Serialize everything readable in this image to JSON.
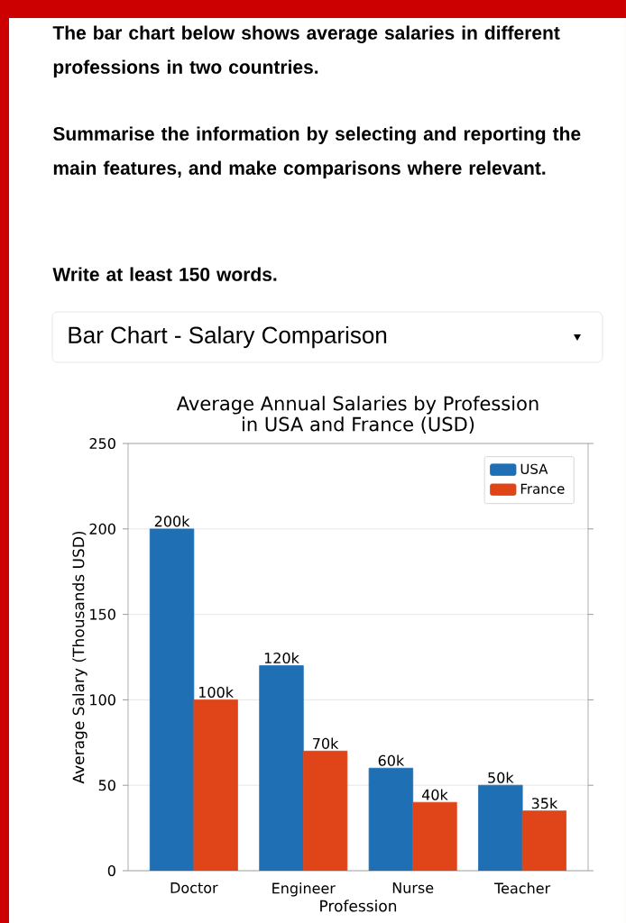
{
  "chart_data": {
    "type": "bar",
    "title": "Average Annual Salaries by Profession\nin USA and France (USD)",
    "xlabel": "Profession",
    "ylabel": "Average Salary (Thousands USD)",
    "annotations": [
      "The bar chart below shows average salaries in different professions in two countries.",
      "Summarise the information by selecting and reporting the main features, and make comparisons where relevant.",
      "Write at least 150 words.",
      "Bar Chart - Salary Comparison"
    ],
    "categories": [
      "Doctor",
      "Engineer",
      "Nurse",
      "Teacher"
    ],
    "series": [
      {
        "name": "USA",
        "color": "#1f6fb4",
        "values": [
          200,
          120,
          60,
          50
        ],
        "value_labels": [
          "200k",
          "120k",
          "60k",
          "50k"
        ]
      },
      {
        "name": "France",
        "color": "#e0451a",
        "values": [
          100,
          70,
          40,
          35
        ],
        "value_labels": [
          "100k",
          "70k",
          "40k",
          "35k"
        ]
      }
    ],
    "ylim": [
      0,
      250
    ],
    "yticks": [
      0,
      50,
      100,
      150,
      200,
      250
    ],
    "grid": "y",
    "legend": "top right"
  }
}
